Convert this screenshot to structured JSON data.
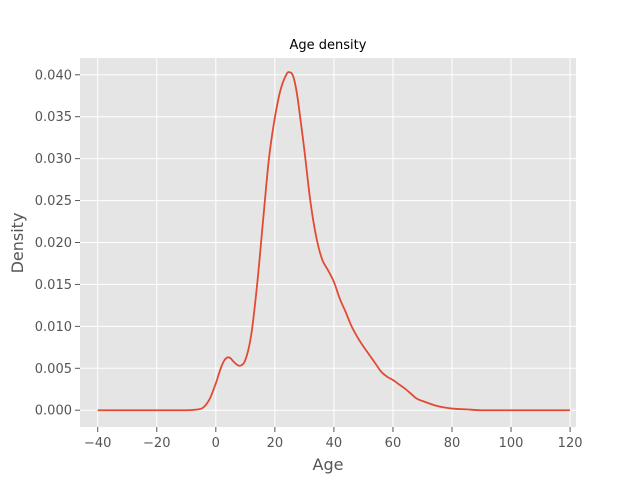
{
  "chart_data": {
    "type": "line",
    "title": "Age density",
    "xlabel": "Age",
    "ylabel": "Density",
    "xlim": [
      -46,
      122
    ],
    "ylim": [
      -0.002,
      0.042
    ],
    "grid": true,
    "xticks": [
      {
        "value": -40,
        "label": "−40"
      },
      {
        "value": -20,
        "label": "−20"
      },
      {
        "value": 0,
        "label": "0"
      },
      {
        "value": 20,
        "label": "20"
      },
      {
        "value": 40,
        "label": "40"
      },
      {
        "value": 60,
        "label": "60"
      },
      {
        "value": 80,
        "label": "80"
      },
      {
        "value": 100,
        "label": "100"
      },
      {
        "value": 120,
        "label": "120"
      }
    ],
    "yticks": [
      {
        "value": 0.0,
        "label": "0.000"
      },
      {
        "value": 0.005,
        "label": "0.005"
      },
      {
        "value": 0.01,
        "label": "0.010"
      },
      {
        "value": 0.015,
        "label": "0.015"
      },
      {
        "value": 0.02,
        "label": "0.020"
      },
      {
        "value": 0.025,
        "label": "0.025"
      },
      {
        "value": 0.03,
        "label": "0.030"
      },
      {
        "value": 0.035,
        "label": "0.035"
      },
      {
        "value": 0.04,
        "label": "0.040"
      }
    ],
    "series": [
      {
        "color": "#E24A33",
        "x": [
          -40,
          -30,
          -20,
          -10,
          -6,
          -4,
          -2,
          0,
          1,
          2,
          3,
          4,
          5,
          6,
          8,
          10,
          12,
          14,
          16,
          18,
          20,
          22,
          24,
          25,
          26,
          27,
          28,
          30,
          32,
          34,
          36,
          38,
          40,
          42,
          44,
          46,
          48,
          50,
          52,
          54,
          56,
          58,
          60,
          62,
          64,
          66,
          68,
          70,
          75,
          80,
          85,
          90,
          100,
          110,
          120
        ],
        "y": [
          0,
          0,
          0,
          0,
          0.0001,
          0.0004,
          0.0014,
          0.0032,
          0.0043,
          0.0053,
          0.006,
          0.0063,
          0.0062,
          0.0058,
          0.0053,
          0.006,
          0.009,
          0.015,
          0.0226,
          0.03,
          0.0349,
          0.0383,
          0.0401,
          0.0403,
          0.04,
          0.0387,
          0.0365,
          0.031,
          0.025,
          0.0207,
          0.018,
          0.0167,
          0.0153,
          0.0133,
          0.0117,
          0.01,
          0.0087,
          0.0076,
          0.0066,
          0.0056,
          0.0046,
          0.004,
          0.0036,
          0.0031,
          0.0026,
          0.002,
          0.0014,
          0.0011,
          0.0005,
          0.0002,
          0.0001,
          0,
          0,
          0,
          0
        ]
      }
    ]
  }
}
